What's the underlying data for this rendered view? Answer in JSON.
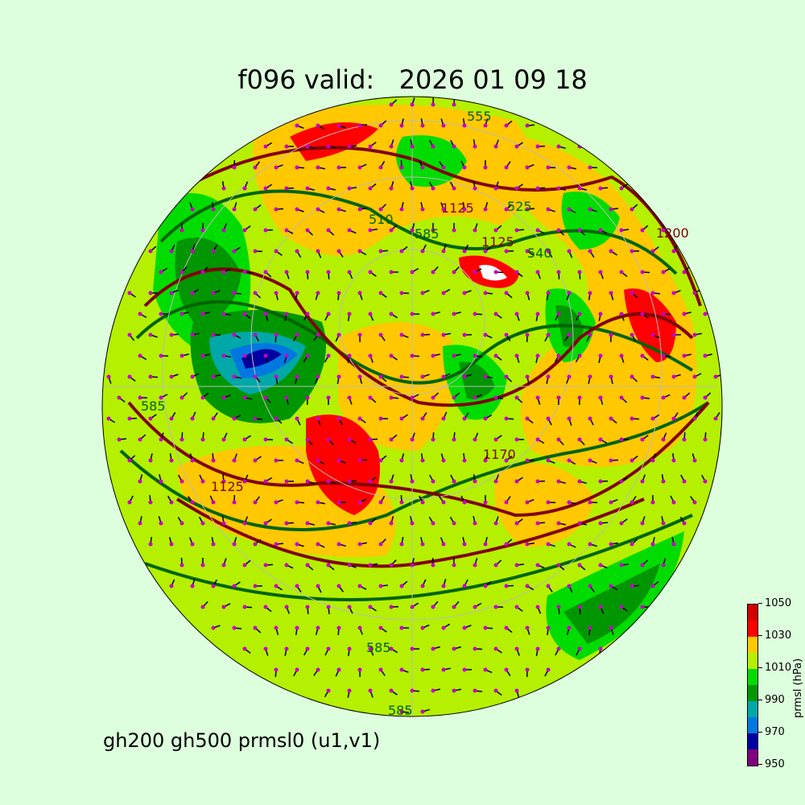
{
  "title": "f096 valid:   2026 01 09 18",
  "subtitle": "gh200 gh500 prmsl0 (u1,v1)",
  "colorbar": {
    "label": "prmsl (hPa)",
    "ticks": [
      "1050",
      "1030",
      "1010",
      "990",
      "970",
      "950"
    ],
    "bins": [
      950,
      960,
      970,
      980,
      990,
      1000,
      1010,
      1020,
      1030,
      1040,
      1050
    ],
    "colors": [
      "#800080",
      "#0000a0",
      "#0078e0",
      "#00a8a8",
      "#009600",
      "#00dc00",
      "#b4f000",
      "#ffc800",
      "#ff0000",
      "#d20000"
    ]
  },
  "map": {
    "projection": "orthographic (north polar)",
    "contour_labels_gh500": [
      "510",
      "525",
      "540",
      "555",
      "585",
      "585",
      "585",
      "585"
    ],
    "contour_labels_gh200": [
      "1125",
      "1125",
      "1170",
      "1200",
      "1125"
    ],
    "gh500_color": "#006400",
    "gh200_color": "#800000",
    "wind_marker_color": "#c800c8"
  }
}
